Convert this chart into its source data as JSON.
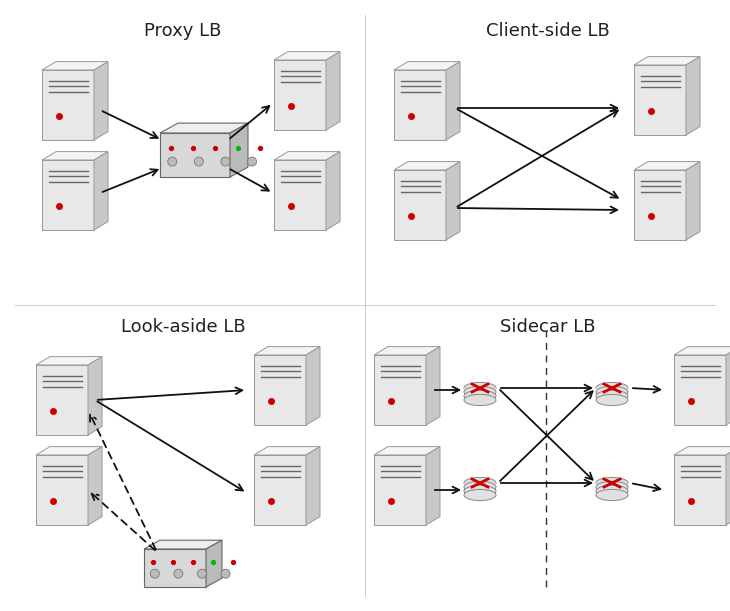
{
  "background_color": "#ffffff",
  "title_fontsize": 13,
  "quad_titles": [
    "Proxy LB",
    "Client-side LB",
    "Look-aside LB",
    "Sidecar LB"
  ],
  "server_color_front": "#e8e8e8",
  "server_color_top": "#f4f4f4",
  "server_color_side": "#c8c8c8",
  "server_edge": "#999999",
  "lb_color_front": "#d8d8d8",
  "lb_color_top": "#eeeeee",
  "lb_color_side": "#bbbbbb",
  "arrow_color": "#111111",
  "dashed_color": "#111111",
  "divider_color": "#cccccc"
}
